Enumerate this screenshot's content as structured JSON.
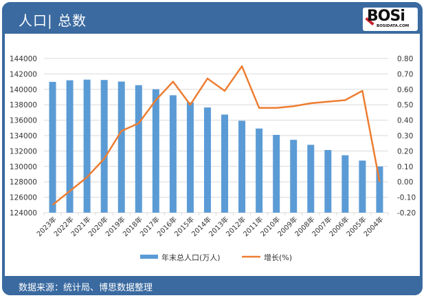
{
  "header": {
    "title": "人口| 总数",
    "logo_main": "BOSi",
    "logo_sub": "BOSIDATA.COM"
  },
  "footer": {
    "source": "数据来源：统计局、博思数据整理"
  },
  "legend": {
    "bar_label": "年末总人口(万人)",
    "line_label": "增长(%)"
  },
  "colors": {
    "header_bg": "#3a6aa0",
    "bar": "#5b9bd5",
    "line": "#ed7d31",
    "grid": "#d9d9d9"
  },
  "chart_data": {
    "type": "bar+line",
    "title": "人口| 总数",
    "categories": [
      "2023年",
      "2022年",
      "2021年",
      "2020年",
      "2019年",
      "2018年",
      "2017年",
      "2016年",
      "2015年",
      "2014年",
      "2013年",
      "2012年",
      "2011年",
      "2010年",
      "2009年",
      "2008年",
      "2007年",
      "2006年",
      "2005年",
      "2004年"
    ],
    "series": [
      {
        "name": "年末总人口(万人)",
        "type": "bar",
        "axis": "left",
        "values": [
          140967,
          141175,
          141260,
          141212,
          141008,
          140541,
          140011,
          139232,
          138326,
          137646,
          136726,
          135922,
          134916,
          134091,
          133450,
          132802,
          132129,
          131448,
          130756,
          129988
        ]
      },
      {
        "name": "增长(%)",
        "type": "line",
        "axis": "right",
        "values": [
          -0.15,
          -0.06,
          0.03,
          0.15,
          0.33,
          0.38,
          0.53,
          0.65,
          0.5,
          0.67,
          0.59,
          0.75,
          0.48,
          0.48,
          0.49,
          0.51,
          0.52,
          0.53,
          0.59,
          0.0
        ]
      }
    ],
    "y_left": {
      "min": 124000,
      "max": 144000,
      "step": 2000,
      "ticks": [
        "144000",
        "142000",
        "140000",
        "138000",
        "136000",
        "134000",
        "132000",
        "130000",
        "128000",
        "126000",
        "124000"
      ]
    },
    "y_right": {
      "min": -0.2,
      "max": 0.8,
      "step": 0.1,
      "ticks": [
        "0.80",
        "0.70",
        "0.60",
        "0.50",
        "0.40",
        "0.30",
        "0.20",
        "0.10",
        "0.00",
        "-0.10",
        "-0.20"
      ]
    },
    "xlabel": "",
    "ylabel": "",
    "grid": true,
    "legend_position": "bottom"
  }
}
